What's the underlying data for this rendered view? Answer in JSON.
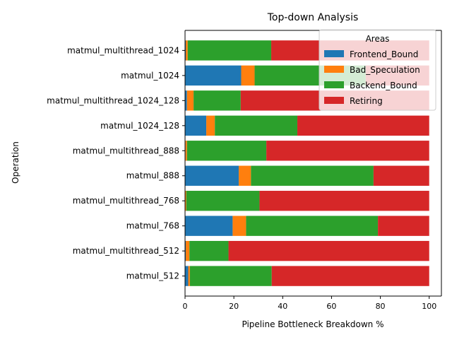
{
  "chart_data": {
    "type": "bar",
    "orientation": "horizontal",
    "stacked": true,
    "title": "Top-down Analysis",
    "xlabel": "Pipeline Bottleneck Breakdown %",
    "ylabel": "Operation",
    "xlim": [
      0,
      105
    ],
    "xticks": [
      0,
      20,
      40,
      60,
      80,
      100
    ],
    "grid": false,
    "legend": {
      "title": "Areas",
      "placement": "top-right"
    },
    "categories": [
      "matmul_512",
      "matmul_multithread_512",
      "matmul_768",
      "matmul_multithread_768",
      "matmul_888",
      "matmul_multithread_888",
      "matmul_1024_128",
      "matmul_multithread_1024_128",
      "matmul_1024",
      "matmul_multithread_1024"
    ],
    "series": [
      {
        "name": "Frontend_Bound",
        "color": "#1f77b4",
        "values": [
          1.3,
          0.3,
          19.5,
          0.1,
          22.0,
          0.2,
          8.7,
          0.8,
          23.0,
          0.3
        ]
      },
      {
        "name": "Bad_Speculation",
        "color": "#ff7f0e",
        "values": [
          0.7,
          1.5,
          5.5,
          0.4,
          5.0,
          0.6,
          3.5,
          2.7,
          5.5,
          0.8
        ]
      },
      {
        "name": "Backend_Bound",
        "color": "#2ca02c",
        "values": [
          33.5,
          16.0,
          54.0,
          30.0,
          50.2,
          32.5,
          33.8,
          19.3,
          45.5,
          34.2
        ]
      },
      {
        "name": "Retiring",
        "color": "#d62728",
        "values": [
          64.5,
          82.2,
          21.0,
          69.5,
          22.8,
          66.7,
          54.0,
          77.2,
          26.0,
          64.7
        ]
      }
    ]
  }
}
